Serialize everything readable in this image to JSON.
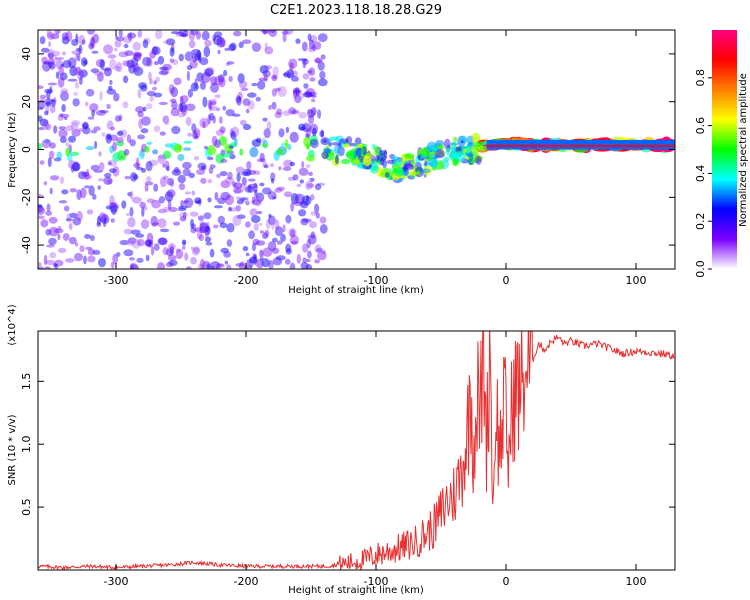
{
  "figure": {
    "title": "C2E1.2023.118.18.28.G29"
  },
  "chart_data": [
    {
      "type": "heatmap",
      "name": "spectrogram",
      "xlabel": "Height of straight line (km)",
      "ylabel": "Frequency (Hz)",
      "xlim": [
        -360,
        130
      ],
      "ylim": [
        -50,
        50
      ],
      "x_ticks": [
        -300,
        -200,
        -100,
        0,
        100
      ],
      "x_tick_labels": [
        "-300",
        "-200",
        "-100",
        "0",
        "100"
      ],
      "y_ticks": [
        40,
        20,
        0,
        -20,
        -40
      ],
      "y_tick_labels": [
        "40",
        "20",
        "0",
        "-20",
        "-40"
      ],
      "colorbar": {
        "label": "Normalized spectral amplitude",
        "range": [
          0,
          1
        ],
        "ticks": [
          0.0,
          0.2,
          0.4,
          0.6,
          0.8
        ],
        "tick_labels": [
          "0.0",
          "0.2",
          "0.4",
          "0.6",
          "0.8"
        ],
        "colors": [
          "#ffffff",
          "#7a00ff",
          "#0000ff",
          "#00ffff",
          "#00ff00",
          "#ffff00",
          "#ff8000",
          "#ff0000",
          "#ff0080"
        ]
      },
      "regions": [
        {
          "x": [
            -360,
            -140
          ],
          "y": [
            -50,
            50
          ],
          "level": 0.2,
          "description": "broadband noise"
        },
        {
          "x": [
            -140,
            -20
          ],
          "y": [
            -20,
            10
          ],
          "level": 0.5,
          "description": "wandering signal"
        },
        {
          "x": [
            -20,
            130
          ],
          "y": [
            0,
            4
          ],
          "level": 0.9,
          "description": "steady tone near 1-2 Hz"
        }
      ],
      "grid": false
    },
    {
      "type": "line",
      "name": "snr",
      "xlabel": "Height of straight line (km)",
      "ylabel": "SNR (10 * v/v)",
      "y_scale_note": "(x10^4)",
      "xlim": [
        -360,
        130
      ],
      "ylim": [
        0,
        1.9
      ],
      "x_ticks": [
        -300,
        -200,
        -100,
        0,
        100
      ],
      "x_tick_labels": [
        "-300",
        "-200",
        "-100",
        "0",
        "100"
      ],
      "y_ticks": [
        0.5,
        1.0,
        1.5
      ],
      "y_tick_labels": [
        "0.5",
        "1.0",
        "1.5"
      ],
      "color": "#e83030",
      "series": [
        {
          "x": [
            -360,
            -340,
            -320,
            -300,
            -280,
            -260,
            -240,
            -220,
            -200,
            -180,
            -160,
            -140,
            -130,
            -120,
            -110,
            -100,
            -90,
            -80,
            -70,
            -60,
            -55,
            -50,
            -45,
            -40,
            -35,
            -30,
            -27,
            -25,
            -22,
            -20,
            -17,
            -15,
            -12,
            -10,
            -8,
            -5,
            -2,
            0,
            2,
            5,
            8,
            10,
            15,
            20,
            25,
            30,
            35,
            40,
            45,
            50,
            60,
            70,
            80,
            90,
            100,
            110,
            120,
            130
          ],
          "values": [
            0.03,
            0.02,
            0.03,
            0.02,
            0.03,
            0.04,
            0.06,
            0.04,
            0.03,
            0.03,
            0.03,
            0.03,
            0.04,
            0.06,
            0.08,
            0.12,
            0.15,
            0.18,
            0.22,
            0.3,
            0.35,
            0.45,
            0.55,
            0.6,
            0.75,
            1.05,
            1.45,
            0.95,
            1.4,
            1.2,
            1.75,
            1.0,
            1.85,
            0.35,
            1.4,
            0.9,
            1.3,
            1.2,
            0.85,
            1.35,
            1.45,
            1.4,
            1.6,
            1.65,
            1.8,
            1.75,
            1.82,
            1.85,
            1.8,
            1.82,
            1.78,
            1.8,
            1.76,
            1.72,
            1.74,
            1.73,
            1.72,
            1.7
          ]
        }
      ],
      "grid": false
    }
  ]
}
